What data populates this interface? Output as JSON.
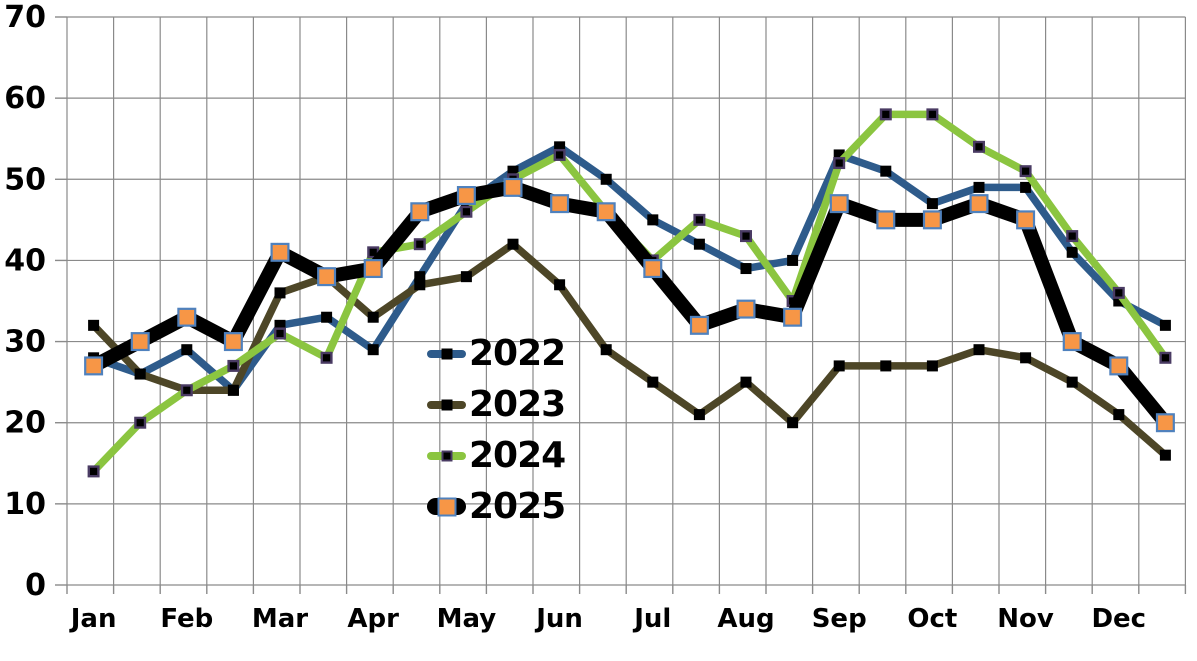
{
  "chart_data": {
    "type": "line",
    "title": "",
    "x_axis": {
      "months": [
        "Jan",
        "Feb",
        "Mar",
        "Apr",
        "May",
        "Jun",
        "Jul",
        "Aug",
        "Sep",
        "Oct",
        "Nov",
        "Dec"
      ],
      "points_per_month": 2
    },
    "y_axis": {
      "min": 0,
      "max": 70,
      "step": 10,
      "tick_labels": [
        "70",
        "60",
        "50",
        "40",
        "30",
        "20",
        "10",
        "0"
      ]
    },
    "grid": true,
    "legend_position": "inside-left-center",
    "series": [
      {
        "name": "2022",
        "color": "#2E5B8B",
        "line_width": 7.5,
        "marker": "black-square",
        "values": [
          28,
          26,
          29,
          24,
          32,
          33,
          29,
          38,
          47,
          51,
          54,
          50,
          45,
          42,
          39,
          40,
          53,
          51,
          47,
          49,
          49,
          41,
          35,
          32
        ]
      },
      {
        "name": "2023",
        "color": "#4D4627",
        "line_width": 7.5,
        "marker": "black-square",
        "values": [
          32,
          26,
          24,
          24,
          36,
          38,
          33,
          37,
          38,
          42,
          37,
          29,
          25,
          21,
          25,
          20,
          27,
          27,
          27,
          29,
          28,
          25,
          21,
          16
        ]
      },
      {
        "name": "2024",
        "color": "#8BC540",
        "line_width": 7.5,
        "marker": "outlined-square",
        "marker_fill": "#000000",
        "marker_outline": "#4A3B63",
        "values": [
          14,
          20,
          24,
          27,
          31,
          28,
          41,
          42,
          46,
          50,
          53,
          46,
          40,
          45,
          43,
          35,
          52,
          58,
          58,
          54,
          51,
          43,
          36,
          28
        ]
      },
      {
        "name": "2025",
        "color": "#000000",
        "line_width": 14,
        "marker": "orange-square",
        "marker_fill": "#F79646",
        "marker_outline": "#4F81BD",
        "values": [
          27,
          30,
          33,
          30,
          41,
          38,
          39,
          46,
          48,
          49,
          47,
          46,
          39,
          32,
          34,
          33,
          47,
          45,
          45,
          47,
          45,
          30,
          27,
          20
        ]
      }
    ]
  },
  "colors": {
    "gridline": "#8A8A8A",
    "text": "#000000",
    "background": "#FFFFFF"
  }
}
